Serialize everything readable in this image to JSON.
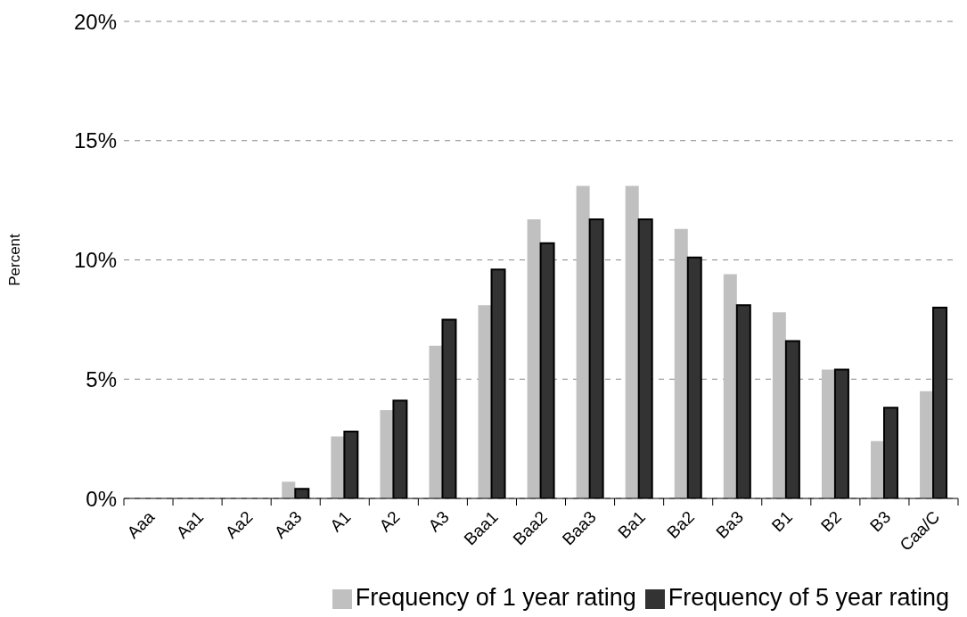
{
  "chart_data": {
    "type": "bar",
    "ylabel": "Percent",
    "categories": [
      "Aaa",
      "Aa1",
      "Aa2",
      "Aa3",
      "A1",
      "A2",
      "A3",
      "Baa1",
      "Baa2",
      "Baa3",
      "Ba1",
      "Ba2",
      "Ba3",
      "B1",
      "B2",
      "B3",
      "Caa/C"
    ],
    "series": [
      {
        "name": "Frequency of 1 year rating",
        "color": "#c0c0c0",
        "values": [
          0,
          0,
          0,
          0.7,
          2.6,
          3.7,
          6.4,
          8.1,
          11.7,
          13.1,
          13.1,
          11.3,
          9.4,
          7.8,
          5.4,
          2.4,
          4.5
        ]
      },
      {
        "name": "Frequency of 5 year rating",
        "color": "#333333",
        "values": [
          0,
          0,
          0,
          0.4,
          2.8,
          4.1,
          7.5,
          9.6,
          10.7,
          11.7,
          11.7,
          10.1,
          8.1,
          6.6,
          5.4,
          3.8,
          8.0
        ]
      }
    ],
    "ylim": [
      0,
      20
    ],
    "yticks": [
      {
        "value": 0,
        "label": "0%"
      },
      {
        "value": 5,
        "label": "5%"
      },
      {
        "value": 10,
        "label": "10%"
      },
      {
        "value": 15,
        "label": "15%"
      },
      {
        "value": 20,
        "label": "20%"
      }
    ],
    "grid": "y",
    "legend": "bottom"
  }
}
